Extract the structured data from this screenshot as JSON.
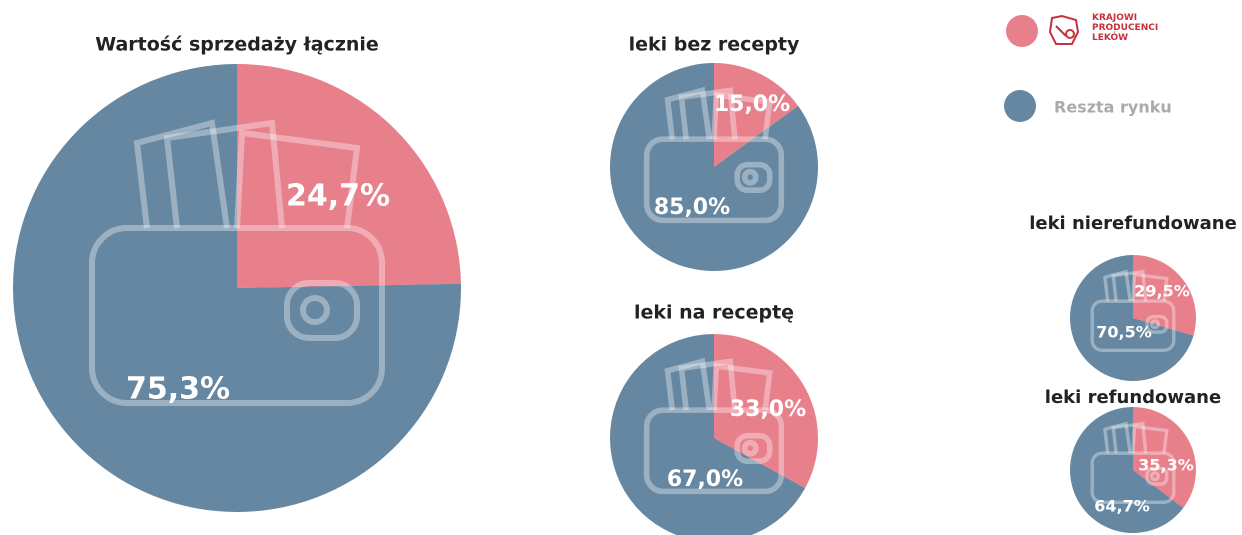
{
  "legend": [
    {
      "name": "KRAJOWI PRODUCENCI LEKÓW",
      "color": "#e8808c"
    },
    {
      "name": "Reszta rynku",
      "color": "#6687a1"
    }
  ],
  "chart_data": [
    {
      "type": "pie",
      "title": "Wartość sprzedaży łącznie",
      "values": [
        24.7,
        75.3
      ],
      "value_labels": [
        "24,7%",
        "75,3%"
      ]
    },
    {
      "type": "pie",
      "title": "leki bez recepty",
      "values": [
        15.0,
        85.0
      ],
      "value_labels": [
        "15,0%",
        "85,0%"
      ]
    },
    {
      "type": "pie",
      "title": "leki na receptę",
      "values": [
        33.0,
        67.0
      ],
      "value_labels": [
        "33,0%",
        "67,0%"
      ]
    },
    {
      "type": "pie",
      "title": "leki nierefundowane",
      "values": [
        29.5,
        70.5
      ],
      "value_labels": [
        "29,5%",
        "70,5%"
      ]
    },
    {
      "type": "pie",
      "title": "leki refundowane",
      "values": [
        35.3,
        64.7
      ],
      "value_labels": [
        "35,3%",
        "64,7%"
      ]
    }
  ]
}
